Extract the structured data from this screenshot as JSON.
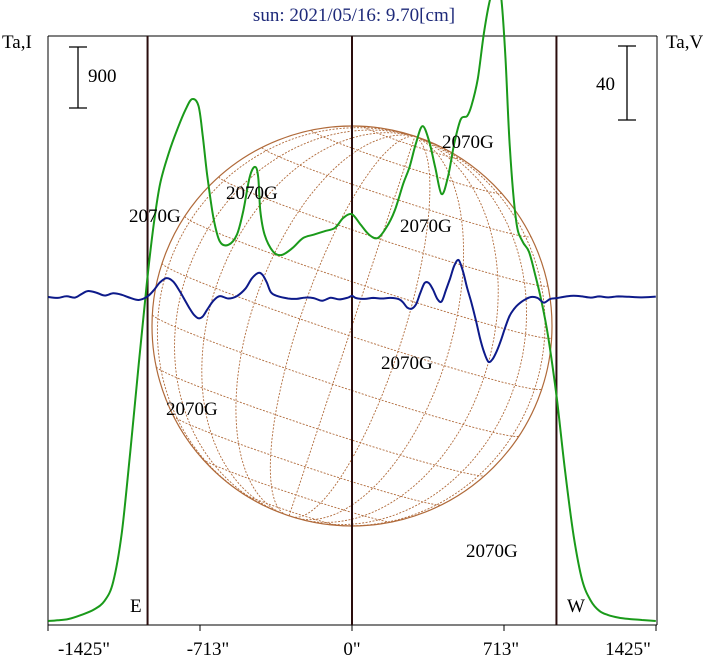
{
  "title": "sun: 2021/05/16: 9.70[cm]",
  "left_axis_label": "Ta,I",
  "right_axis_label": "Ta,V",
  "left_scale_label": "900",
  "right_scale_label": "40",
  "east_label": "E",
  "west_label": "W",
  "colors": {
    "intensity": "#1a9a1a",
    "polarization": "#0d1a8a",
    "disk": "#b06a3a",
    "title": "#1e2a7a"
  },
  "chart_data": {
    "type": "line",
    "title": "sun: 2021/05/16: 9.70[cm]",
    "x_ticks": [
      "-1425\"",
      "-713\"",
      "0\"",
      "713\"",
      "1425\""
    ],
    "xlim": [
      -1425,
      1425
    ],
    "vertical_markers": [
      -959,
      0,
      959
    ],
    "annotations": [
      {
        "text": "2070G",
        "x": -770,
        "y_pos": "upper"
      },
      {
        "text": "2070G",
        "x": -440,
        "y_pos": "upper"
      },
      {
        "text": "2070G",
        "x": 370,
        "y_pos": "upper"
      },
      {
        "text": "2070G",
        "x": 580,
        "y_pos": "upper"
      },
      {
        "text": "2070G",
        "x": -713,
        "y_pos": "lower"
      },
      {
        "text": "2070G",
        "x": 300,
        "y_pos": "lower"
      },
      {
        "text": "2070G",
        "x": 690,
        "y_pos": "lower"
      }
    ],
    "series": [
      {
        "key": "intensity",
        "x": [
          -1425,
          -1380,
          -1330,
          -1270,
          -1210,
          -1160,
          -1120,
          -1080,
          -1040,
          -1000,
          -960,
          -930,
          -900,
          -860,
          -820,
          -780,
          -750,
          -720,
          -700,
          -680,
          -650,
          -620,
          -580,
          -540,
          -510,
          -480,
          -455,
          -440,
          -430,
          -410,
          -370,
          -330,
          -280,
          -230,
          -180,
          -130,
          -80,
          -40,
          0,
          40,
          80,
          120,
          160,
          200,
          240,
          270,
          300,
          330,
          360,
          390,
          420,
          450,
          480,
          510,
          540,
          560,
          590,
          620,
          650,
          680,
          700,
          720,
          740,
          770,
          800,
          830,
          860,
          890,
          920,
          960,
          1000,
          1040,
          1080,
          1120,
          1160,
          1200,
          1250,
          1300,
          1360,
          1425
        ],
        "y": [
          0,
          10,
          30,
          90,
          170,
          300,
          580,
          1300,
          2500,
          3800,
          5050,
          5850,
          6450,
          6900,
          7250,
          7550,
          7700,
          7600,
          7150,
          6600,
          5950,
          5600,
          5550,
          5700,
          6050,
          6550,
          6700,
          6550,
          6050,
          5700,
          5450,
          5400,
          5500,
          5650,
          5700,
          5750,
          5800,
          5950,
          6000,
          5850,
          5700,
          5650,
          5800,
          6050,
          6450,
          6700,
          7050,
          7300,
          7100,
          6700,
          6300,
          6550,
          7050,
          7400,
          7450,
          7600,
          8000,
          8700,
          9200,
          9400,
          9200,
          8300,
          7000,
          5900,
          5600,
          5450,
          5100,
          4700,
          4200,
          3300,
          2200,
          1250,
          600,
          300,
          150,
          90,
          50,
          30,
          15,
          0
        ]
      },
      {
        "key": "polarization",
        "x": [
          -1425,
          -1380,
          -1340,
          -1300,
          -1270,
          -1240,
          -1200,
          -1160,
          -1120,
          -1080,
          -1040,
          -1000,
          -960,
          -930,
          -900,
          -870,
          -840,
          -810,
          -780,
          -760,
          -740,
          -720,
          -700,
          -680,
          -650,
          -620,
          -580,
          -540,
          -500,
          -470,
          -440,
          -420,
          -400,
          -380,
          -350,
          -300,
          -260,
          -220,
          -180,
          -140,
          -100,
          -60,
          -20,
          0,
          20,
          60,
          100,
          140,
          180,
          220,
          240,
          260,
          280,
          300,
          320,
          340,
          360,
          380,
          400,
          420,
          440,
          460,
          480,
          500,
          520,
          540,
          560,
          580,
          600,
          620,
          640,
          660,
          680,
          700,
          720,
          740,
          760,
          780,
          810,
          840,
          870,
          900,
          930,
          960,
          1000,
          1040,
          1080,
          1120,
          1160,
          1200,
          1250,
          1300,
          1360,
          1425
        ],
        "y": [
          0,
          -0.5,
          0.4,
          -0.3,
          1.5,
          3.2,
          2.4,
          0.8,
          2.0,
          1.2,
          -0.5,
          -1.6,
          0.2,
          3.6,
          8.0,
          10.2,
          8.5,
          3.5,
          -2.5,
          -6.5,
          -9.8,
          -11.5,
          -10.5,
          -7.0,
          -2.0,
          0.5,
          -0.8,
          0.5,
          4.5,
          10.0,
          13.0,
          12.0,
          8.0,
          2.5,
          0.5,
          -0.8,
          -1.0,
          -0.3,
          -0.6,
          -2.0,
          -0.4,
          -1.3,
          -0.4,
          0.6,
          -0.6,
          -1.0,
          -0.5,
          -0.8,
          -0.5,
          -1.2,
          -3.0,
          -5.8,
          -6.3,
          -4.0,
          2.0,
          7.5,
          7.6,
          4.0,
          -1.0,
          -2.5,
          3.5,
          10.0,
          17.0,
          20.0,
          14.0,
          5.0,
          -3.0,
          -12.0,
          -22.0,
          -30.0,
          -35.0,
          -33.5,
          -29.0,
          -23.0,
          -16.0,
          -10.0,
          -6.5,
          -4.0,
          -1.5,
          0.0,
          -0.5,
          -3.0,
          -1.0,
          -0.6,
          0.2,
          0.7,
          0.3,
          -0.3,
          0.3,
          -0.2,
          0.3,
          0.1,
          -0.2,
          0.2
        ]
      }
    ]
  },
  "labels": {
    "t1": "2070G",
    "t2": "2070G",
    "t3": "2070G",
    "t4": "2070G",
    "b1": "2070G",
    "b2": "2070G",
    "b3": "2070G",
    "xt1": "-1425\"",
    "xt2": "-713\"",
    "xt3": "0\"",
    "xt4": "713\"",
    "xt5": "1425\""
  }
}
